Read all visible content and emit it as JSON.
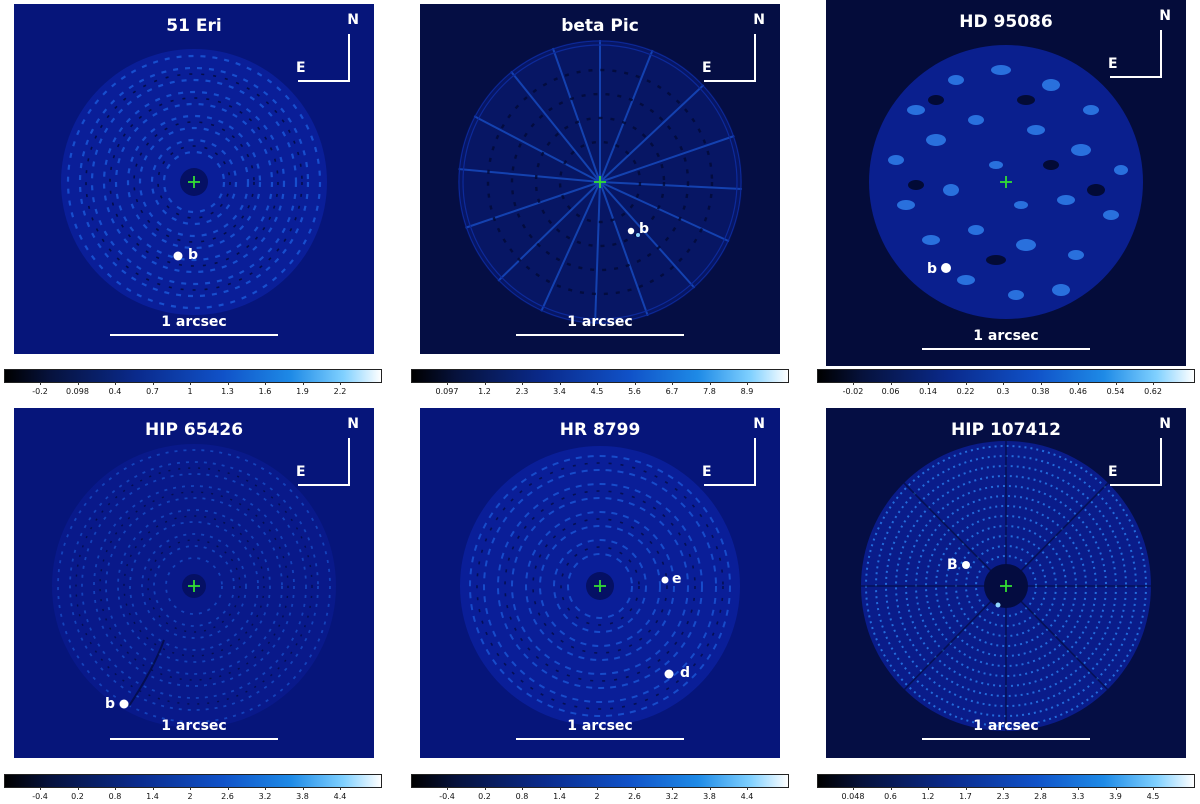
{
  "labels": {
    "north": "N",
    "east": "E",
    "scale": "1 arcsec"
  },
  "panels": [
    {
      "title": "51 Eri",
      "bg": "#06157a",
      "star_marker": "+",
      "companions": [
        "b"
      ],
      "colorbar_ticks": [
        "-0.2",
        "0.098",
        "0.4",
        "0.7",
        "1",
        "1.3",
        "1.6",
        "1.9",
        "2.2"
      ]
    },
    {
      "title": "beta Pic",
      "bg": "#050e44",
      "star_marker": "+",
      "companions": [
        "b"
      ],
      "colorbar_ticks": [
        "0.097",
        "1.2",
        "2.3",
        "3.4",
        "4.5",
        "5.6",
        "6.7",
        "7.8",
        "8.9"
      ]
    },
    {
      "title": "HD 95086",
      "bg": "#040c3a",
      "star_marker": "+",
      "companions": [
        "b"
      ],
      "colorbar_ticks": [
        "-0.02",
        "0.06",
        "0.14",
        "0.22",
        "0.3",
        "0.38",
        "0.46",
        "0.54",
        "0.62"
      ]
    },
    {
      "title": "HIP 65426",
      "bg": "#06157a",
      "star_marker": "+",
      "companions": [
        "b"
      ],
      "colorbar_ticks": [
        "-0.4",
        "0.2",
        "0.8",
        "1.4",
        "2",
        "2.6",
        "3.2",
        "3.8",
        "4.4"
      ]
    },
    {
      "title": "HR 8799",
      "bg": "#06157a",
      "star_marker": "+",
      "companions": [
        "e",
        "d"
      ],
      "colorbar_ticks": [
        "-0.4",
        "0.2",
        "0.8",
        "1.4",
        "2",
        "2.6",
        "3.2",
        "3.8",
        "4.4"
      ]
    },
    {
      "title": "HIP 107412",
      "bg": "#050e44",
      "star_marker": "+",
      "companions": [
        "B"
      ],
      "colorbar_ticks": [
        "0.048",
        "0.6",
        "1.2",
        "1.7",
        "2.3",
        "2.8",
        "3.3",
        "3.9",
        "4.5"
      ]
    }
  ],
  "colors": {
    "star_marker": "#33dd33",
    "colorbar_low": "#000000",
    "colorbar_high": "#ffffff"
  }
}
